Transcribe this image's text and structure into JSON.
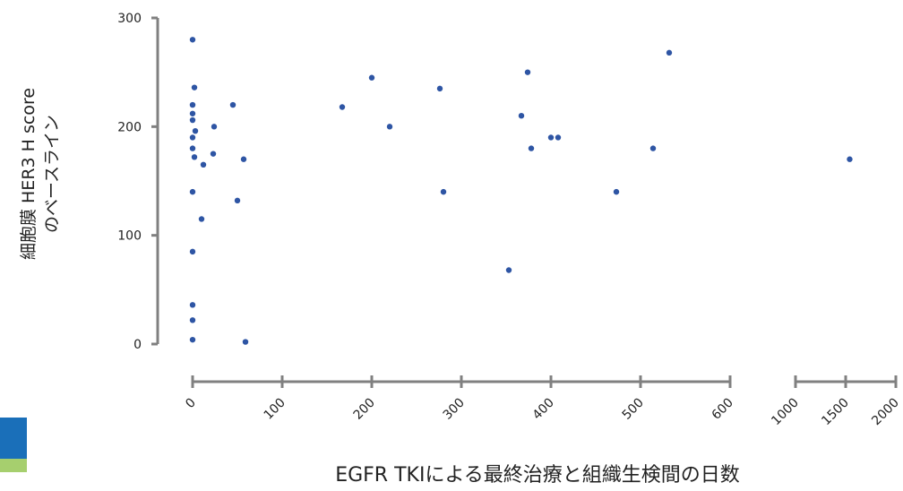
{
  "colors": {
    "point": "#2e55a4",
    "axis": "#808080",
    "brand_blue": "#1a6fb9",
    "brand_green": "#a6cf6e"
  },
  "chart_data": {
    "type": "scatter",
    "title": "",
    "xlabel": "EGFR TKIによる最終治療と組織生検間の日数",
    "ylabel_line1": "細胞膜 HER3 H score",
    "ylabel_line2": "のベースライン",
    "x_scale": "broken",
    "x_segments": [
      {
        "range": [
          0,
          600
        ],
        "ticks": [
          0,
          100,
          200,
          300,
          400,
          500,
          600
        ]
      },
      {
        "range": [
          1000,
          2000
        ],
        "ticks": [
          1000,
          1500,
          2000
        ]
      }
    ],
    "ylim": [
      0,
      300
    ],
    "yticks": [
      0,
      100,
      200,
      300
    ],
    "grid": false,
    "points": [
      {
        "x": 0,
        "y": 280
      },
      {
        "x": 2,
        "y": 236
      },
      {
        "x": 0,
        "y": 220
      },
      {
        "x": 0,
        "y": 212
      },
      {
        "x": 0,
        "y": 206
      },
      {
        "x": 3,
        "y": 196
      },
      {
        "x": 0,
        "y": 190
      },
      {
        "x": 0,
        "y": 180
      },
      {
        "x": 2,
        "y": 172
      },
      {
        "x": 0,
        "y": 140
      },
      {
        "x": 0,
        "y": 85
      },
      {
        "x": 0,
        "y": 36
      },
      {
        "x": 0,
        "y": 22
      },
      {
        "x": 0,
        "y": 4
      },
      {
        "x": 10,
        "y": 115
      },
      {
        "x": 12,
        "y": 165
      },
      {
        "x": 23,
        "y": 175
      },
      {
        "x": 24,
        "y": 200
      },
      {
        "x": 45,
        "y": 220
      },
      {
        "x": 50,
        "y": 132
      },
      {
        "x": 57,
        "y": 170
      },
      {
        "x": 59,
        "y": 2
      },
      {
        "x": 167,
        "y": 218
      },
      {
        "x": 200,
        "y": 245
      },
      {
        "x": 220,
        "y": 200
      },
      {
        "x": 276,
        "y": 235
      },
      {
        "x": 280,
        "y": 140
      },
      {
        "x": 353,
        "y": 68
      },
      {
        "x": 367,
        "y": 210
      },
      {
        "x": 374,
        "y": 250
      },
      {
        "x": 378,
        "y": 180
      },
      {
        "x": 400,
        "y": 190
      },
      {
        "x": 408,
        "y": 190
      },
      {
        "x": 473,
        "y": 140
      },
      {
        "x": 514,
        "y": 180
      },
      {
        "x": 532,
        "y": 268
      },
      {
        "x": 1540,
        "y": 170
      }
    ]
  }
}
